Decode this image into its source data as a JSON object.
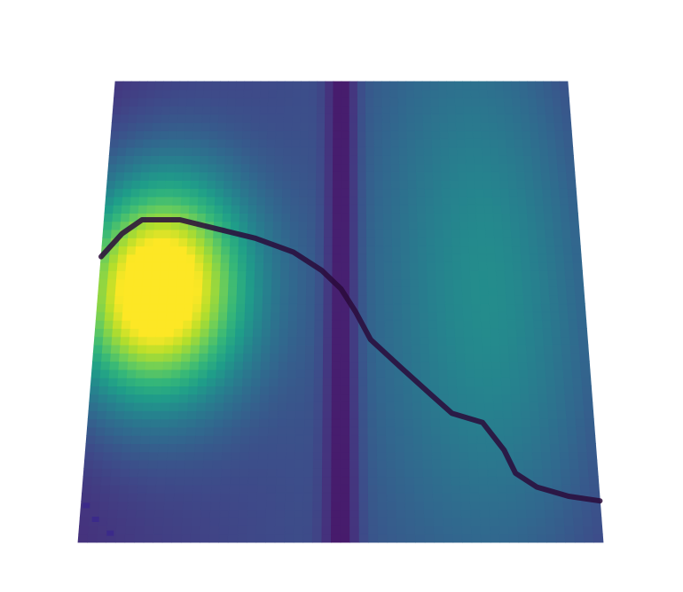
{
  "chart_data": {
    "type": "heatmap",
    "colormap": "viridis",
    "colormap_colors": [
      "#440154",
      "#482878",
      "#3e4a89",
      "#31688e",
      "#26828e",
      "#1f9e89",
      "#35b779",
      "#6ece58",
      "#b5de2b",
      "#fde725"
    ],
    "title": "",
    "xlabel": "",
    "ylabel": "",
    "xlim": [
      0,
      1
    ],
    "ylim": [
      0,
      1
    ],
    "grid": false,
    "legend": "none",
    "surface": {
      "peak": {
        "x": 0.12,
        "y": 0.55,
        "value": 1.0
      },
      "trough_x": 0.5,
      "right_lobe": {
        "x": 0.82,
        "y": 0.55,
        "value": 0.3
      }
    },
    "path": {
      "name": "",
      "color": "#2a0a3a",
      "points": [
        [
          0.0,
          0.62
        ],
        [
          0.04,
          0.67
        ],
        [
          0.08,
          0.7
        ],
        [
          0.16,
          0.7
        ],
        [
          0.24,
          0.68
        ],
        [
          0.32,
          0.66
        ],
        [
          0.4,
          0.63
        ],
        [
          0.46,
          0.59
        ],
        [
          0.5,
          0.55
        ],
        [
          0.53,
          0.5
        ],
        [
          0.56,
          0.44
        ],
        [
          0.62,
          0.38
        ],
        [
          0.68,
          0.32
        ],
        [
          0.72,
          0.28
        ],
        [
          0.78,
          0.26
        ],
        [
          0.82,
          0.2
        ],
        [
          0.84,
          0.15
        ],
        [
          0.88,
          0.12
        ],
        [
          0.94,
          0.1
        ],
        [
          1.0,
          0.09
        ]
      ]
    }
  }
}
